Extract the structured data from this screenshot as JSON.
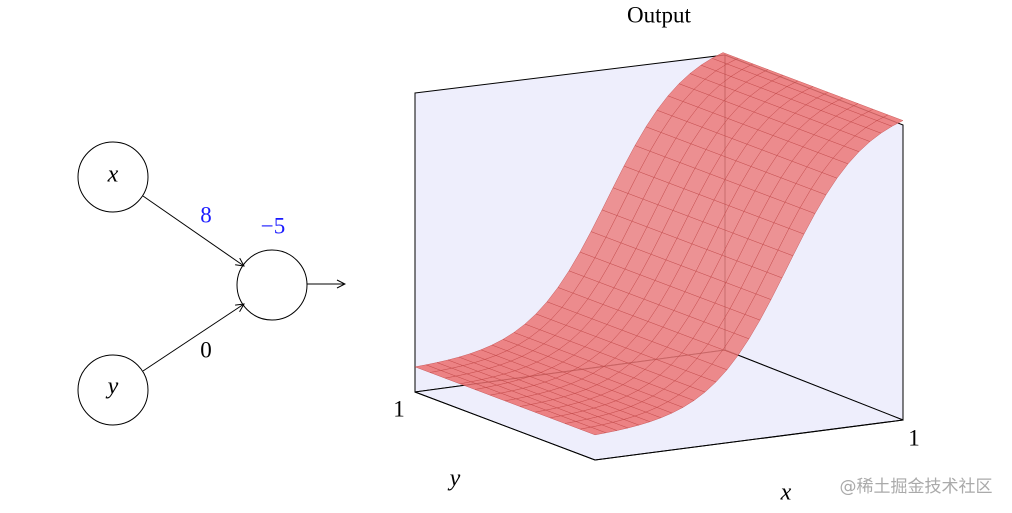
{
  "network": {
    "inputs": [
      {
        "label": "x",
        "weight": 8
      },
      {
        "label": "y",
        "weight": 0
      }
    ],
    "bias": {
      "value": -5,
      "label": "−5"
    }
  },
  "plot": {
    "title": "Output",
    "x_label": "x",
    "y_label": "y",
    "x_tick": "1",
    "y_tick": "1"
  },
  "watermark": "@稀土掘金技术社区"
}
